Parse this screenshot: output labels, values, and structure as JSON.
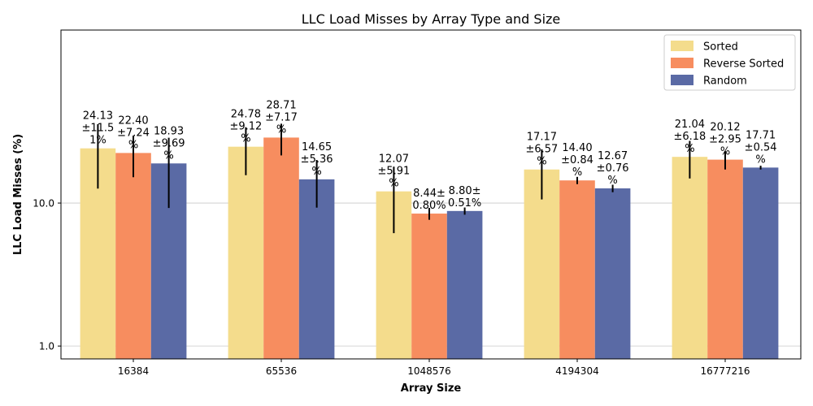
{
  "chart_data": {
    "type": "bar",
    "title": "LLC Load Misses by Array Type and Size",
    "xlabel": "Array Size",
    "ylabel": "LLC Load Misses (%)",
    "categories": [
      "16384",
      "65536",
      "1048576",
      "4194304",
      "16777216"
    ],
    "y_scale": "log",
    "y_ticks": [
      "1.0",
      "10.0"
    ],
    "grid": "y-major",
    "legend_position": "top-right",
    "series": [
      {
        "name": "Sorted",
        "color": "#f4dc8c",
        "values": [
          24.13,
          24.78,
          12.07,
          17.17,
          21.04
        ],
        "errors": [
          11.51,
          9.12,
          5.91,
          6.57,
          6.18
        ],
        "labels": [
          "24.13\n±11.5\n1%",
          "24.78\n±9.12\n%",
          "12.07\n±5.91\n%",
          "17.17\n±6.57\n%",
          "21.04\n±6.18\n%"
        ]
      },
      {
        "name": "Reverse Sorted",
        "color": "#f78d5f",
        "values": [
          22.4,
          28.71,
          8.44,
          14.4,
          20.12
        ],
        "errors": [
          7.24,
          7.17,
          0.8,
          0.84,
          2.95
        ],
        "labels": [
          "22.40\n±7.24\n%",
          "28.71\n±7.17\n%",
          "8.44±\n0.80%",
          "14.40\n±0.84\n%",
          "20.12\n±2.95\n%"
        ]
      },
      {
        "name": "Random",
        "color": "#5a6aa5",
        "values": [
          18.93,
          14.65,
          8.8,
          12.67,
          17.71
        ],
        "errors": [
          9.69,
          5.36,
          0.51,
          0.76,
          0.54
        ],
        "labels": [
          "18.93\n±9.69\n%",
          "14.65\n±5.36\n%",
          "8.80±\n0.51%",
          "12.67\n±0.76\n%",
          "17.71\n±0.54\n%"
        ]
      }
    ]
  }
}
